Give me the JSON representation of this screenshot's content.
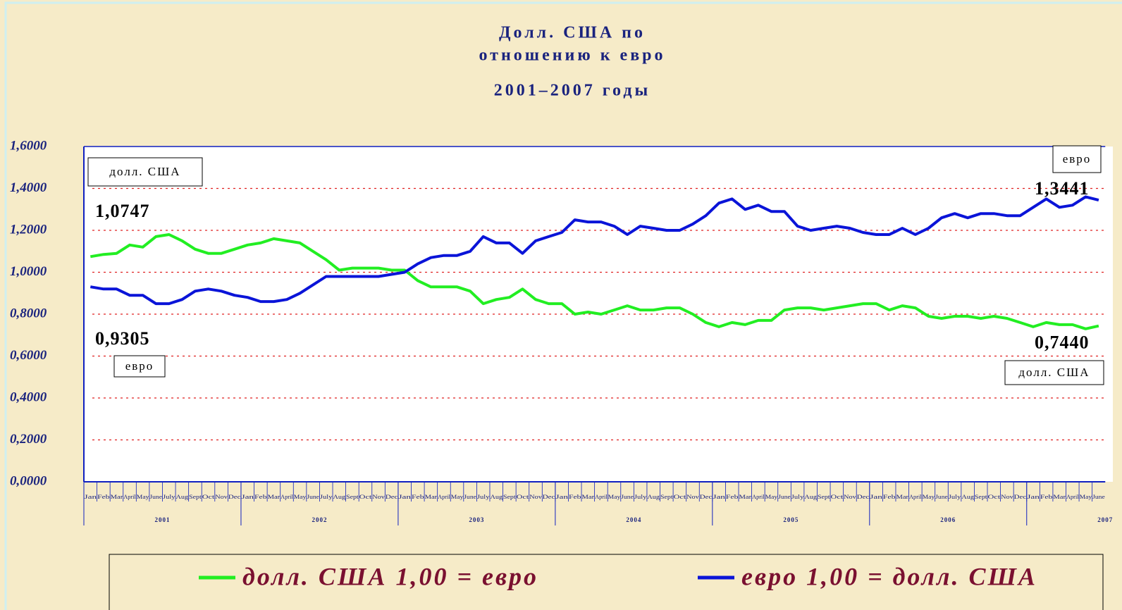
{
  "chart_data": {
    "type": "line",
    "title": [
      "Долл. США по",
      "отношению к евро"
    ],
    "subtitle": "2001–2007 годы",
    "categories": [
      "Jan",
      "Feb",
      "Mar",
      "April",
      "May",
      "June",
      "July",
      "Aug",
      "Sept",
      "Oct",
      "Nov",
      "Dec",
      "Jan",
      "Feb",
      "Mar",
      "April",
      "May",
      "June",
      "July",
      "Aug",
      "Sept",
      "Oct",
      "Nov",
      "Dec",
      "Jan",
      "Feb",
      "Mar",
      "April",
      "May",
      "June",
      "July",
      "Aug",
      "Sept",
      "Oct",
      "Nov",
      "Dec",
      "Jan",
      "Feb",
      "Mar",
      "April",
      "May",
      "June",
      "July",
      "Aug",
      "Sept",
      "Oct",
      "Nov",
      "Dec",
      "Jan",
      "Feb",
      "Mar",
      "April",
      "May",
      "June",
      "July",
      "Aug",
      "Sept",
      "Oct",
      "Nov",
      "Dec",
      "Jan",
      "Feb",
      "Mar",
      "April",
      "May",
      "June",
      "July",
      "Aug",
      "Sept",
      "Oct",
      "Nov",
      "Dec",
      "Jan",
      "Feb",
      "Mar",
      "April",
      "May",
      "June"
    ],
    "years": [
      "2001",
      "2002",
      "2003",
      "2004",
      "2005",
      "2006",
      "2007"
    ],
    "series": [
      {
        "name": "долл. США 1,00 = евро",
        "color": "#22ee22",
        "values": [
          1.0747,
          1.085,
          1.09,
          1.13,
          1.12,
          1.17,
          1.18,
          1.15,
          1.11,
          1.09,
          1.09,
          1.11,
          1.13,
          1.14,
          1.16,
          1.15,
          1.14,
          1.1,
          1.06,
          1.01,
          1.02,
          1.02,
          1.02,
          1.01,
          1.01,
          0.96,
          0.93,
          0.93,
          0.93,
          0.91,
          0.85,
          0.87,
          0.88,
          0.92,
          0.87,
          0.85,
          0.85,
          0.8,
          0.81,
          0.8,
          0.82,
          0.84,
          0.82,
          0.82,
          0.83,
          0.83,
          0.8,
          0.76,
          0.74,
          0.76,
          0.75,
          0.77,
          0.77,
          0.82,
          0.83,
          0.83,
          0.82,
          0.83,
          0.84,
          0.85,
          0.85,
          0.82,
          0.84,
          0.83,
          0.79,
          0.78,
          0.79,
          0.79,
          0.78,
          0.79,
          0.78,
          0.76,
          0.74,
          0.76,
          0.75,
          0.75,
          0.73,
          0.744
        ],
        "value_labels": [
          "1,0747",
          null,
          null,
          null,
          null,
          null,
          null,
          null,
          null,
          null,
          null,
          null,
          null,
          null,
          null,
          null,
          null,
          null,
          null,
          null,
          null,
          null,
          null,
          null,
          null,
          null,
          null,
          null,
          null,
          null,
          null,
          null,
          null,
          null,
          null,
          null,
          null,
          null,
          null,
          null,
          null,
          null,
          null,
          null,
          null,
          null,
          null,
          null,
          null,
          null,
          null,
          null,
          null,
          null,
          null,
          null,
          null,
          null,
          null,
          null,
          null,
          null,
          null,
          null,
          null,
          null,
          null,
          null,
          null,
          null,
          null,
          null,
          null,
          null,
          null,
          null,
          null,
          "0,7440"
        ]
      },
      {
        "name": "евро 1,00 = долл. США",
        "color": "#0a14d8",
        "values": [
          0.9305,
          0.92,
          0.92,
          0.89,
          0.89,
          0.85,
          0.85,
          0.87,
          0.91,
          0.92,
          0.91,
          0.89,
          0.88,
          0.86,
          0.86,
          0.87,
          0.9,
          0.94,
          0.98,
          0.98,
          0.98,
          0.98,
          0.98,
          0.99,
          1.0,
          1.04,
          1.07,
          1.08,
          1.08,
          1.1,
          1.17,
          1.14,
          1.14,
          1.09,
          1.15,
          1.17,
          1.19,
          1.25,
          1.24,
          1.24,
          1.22,
          1.18,
          1.22,
          1.21,
          1.2,
          1.2,
          1.23,
          1.27,
          1.33,
          1.35,
          1.3,
          1.32,
          1.29,
          1.29,
          1.22,
          1.2,
          1.21,
          1.22,
          1.21,
          1.19,
          1.18,
          1.18,
          1.21,
          1.18,
          1.21,
          1.26,
          1.28,
          1.26,
          1.28,
          1.28,
          1.27,
          1.27,
          1.31,
          1.35,
          1.31,
          1.32,
          1.36,
          1.3441
        ],
        "value_labels": [
          "0,9305",
          null,
          null,
          null,
          null,
          null,
          null,
          null,
          null,
          null,
          null,
          null,
          null,
          null,
          null,
          null,
          null,
          null,
          null,
          null,
          null,
          null,
          null,
          null,
          null,
          null,
          null,
          null,
          null,
          null,
          null,
          null,
          null,
          null,
          null,
          null,
          null,
          null,
          null,
          null,
          null,
          null,
          null,
          null,
          null,
          null,
          null,
          null,
          null,
          null,
          null,
          null,
          null,
          null,
          null,
          null,
          null,
          null,
          null,
          null,
          null,
          null,
          null,
          null,
          null,
          null,
          null,
          null,
          null,
          null,
          null,
          null,
          null,
          null,
          null,
          null,
          null,
          "1,3441"
        ]
      }
    ],
    "annotations": [
      "долл. США",
      "евро",
      "евро",
      "долл. США"
    ],
    "ylim": [
      0,
      1.6
    ],
    "yticks": [
      {
        "value": 0,
        "label": "0,0000"
      },
      {
        "value": 0.2,
        "label": "0,2000"
      },
      {
        "value": 0.4,
        "label": "0,4000"
      },
      {
        "value": 0.6,
        "label": "0,6000"
      },
      {
        "value": 0.8,
        "label": "0,8000"
      },
      {
        "value": 1.0,
        "label": "1,0000"
      },
      {
        "value": 1.2,
        "label": "1,2000"
      },
      {
        "value": 1.4,
        "label": "1,4000"
      },
      {
        "value": 1.6,
        "label": "1,6000"
      }
    ],
    "grid": true,
    "legend": "bottom"
  }
}
